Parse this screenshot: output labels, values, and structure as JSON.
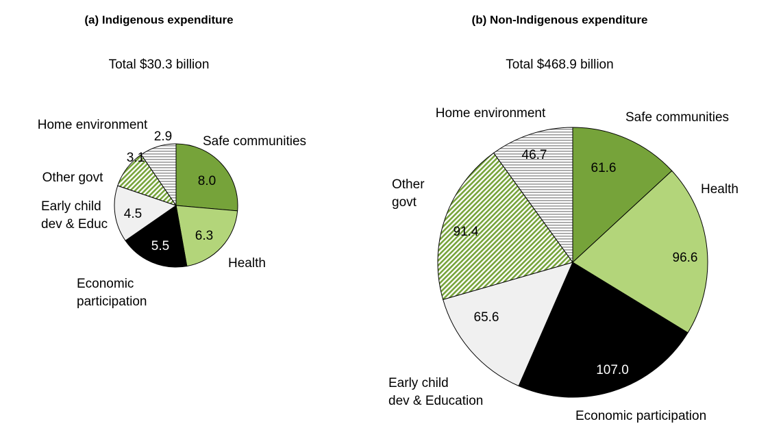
{
  "chart_data": [
    {
      "type": "pie",
      "title": "(a) Indigenous expenditure",
      "subtitle": "Total $30.3 billion",
      "categories": [
        "Safe communities",
        "Health",
        "Economic participation",
        "Early child dev & Educ",
        "Other govt",
        "Home environment"
      ],
      "values": [
        8.0,
        6.3,
        5.5,
        4.5,
        3.1,
        2.9
      ],
      "value_labels": [
        "8.0",
        "6.3",
        "5.5",
        "4.5",
        "3.1",
        "2.9"
      ],
      "colors": [
        "#76a33a",
        "#b3d57a",
        "#000000",
        "#f0f0f0",
        "url(#hatch-green)",
        "url(#stripe-gray)"
      ]
    },
    {
      "type": "pie",
      "title": "(b) Non-Indigenous expenditure",
      "subtitle": "Total $468.9 billion",
      "categories": [
        "Safe communities",
        "Health",
        "Economic participation",
        "Early child dev & Education",
        "Other govt",
        "Home environment"
      ],
      "values": [
        61.6,
        96.6,
        107.0,
        65.6,
        91.4,
        46.7
      ],
      "value_labels": [
        "61.6",
        "96.6",
        "107.0",
        "65.6",
        "91.4",
        "46.7"
      ],
      "colors": [
        "#76a33a",
        "#b3d57a",
        "#000000",
        "#f0f0f0",
        "url(#hatch-green)",
        "url(#stripe-gray)"
      ]
    }
  ]
}
